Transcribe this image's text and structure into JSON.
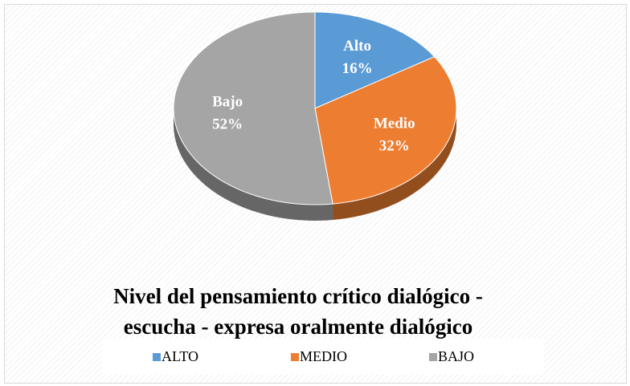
{
  "chart_data": {
    "type": "pie",
    "title": [
      "Nivel del pensamiento crítico dialógico -",
      "escucha - expresa oralmente dialógico"
    ],
    "categories": [
      "ALTO",
      "MEDIO",
      "BAJO"
    ],
    "label_names": [
      "Alto",
      "Medio",
      "Bajo"
    ],
    "values": [
      16,
      32,
      52
    ],
    "value_labels": [
      "16%",
      "32%",
      "52%"
    ],
    "colors": [
      "#5b9bd5",
      "#ed7d31",
      "#a5a5a5"
    ],
    "legend": "bottom"
  }
}
